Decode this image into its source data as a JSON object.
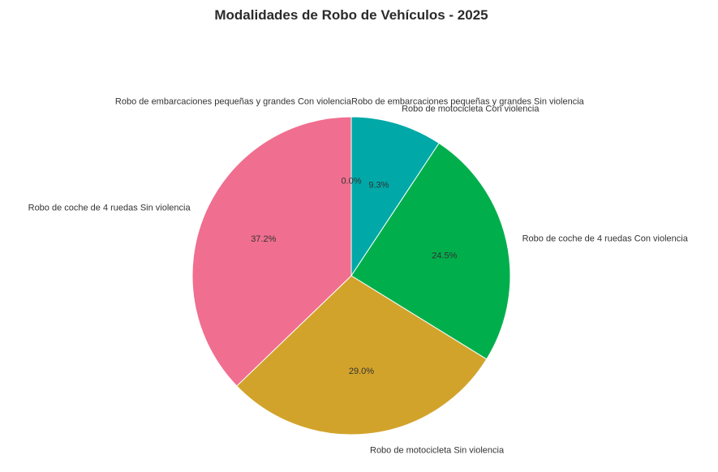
{
  "chart_data": {
    "type": "pie",
    "title": "Modalidades de Robo de Vehículos - 2025",
    "slices": [
      {
        "label": "Robo de embarcaciones pequeñas y grandes Sin violencia",
        "value": 0.0,
        "pct_label": "",
        "color": "#c97e25"
      },
      {
        "label": "Robo de motocicleta Con violencia",
        "value": 9.3,
        "pct_label": "9.3%",
        "color": "#00a8a8"
      },
      {
        "label": "Robo de coche de 4 ruedas Con violencia",
        "value": 24.5,
        "pct_label": "24.5%",
        "color": "#00af4c"
      },
      {
        "label": "Robo de motocicleta Sin violencia",
        "value": 29.0,
        "pct_label": "29.0%",
        "color": "#d2a32b"
      },
      {
        "label": "Robo de coche de 4 ruedas Sin violencia",
        "value": 37.2,
        "pct_label": "37.2%",
        "color": "#f06e8f"
      },
      {
        "label": "Robo de embarcaciones pequeñas y grandes Con violencia",
        "value": 0.0,
        "pct_label": "0.0%",
        "color": "#8e9c2a"
      }
    ],
    "start_angle_deg": 90,
    "direction": "clockwise",
    "legend": "none"
  }
}
